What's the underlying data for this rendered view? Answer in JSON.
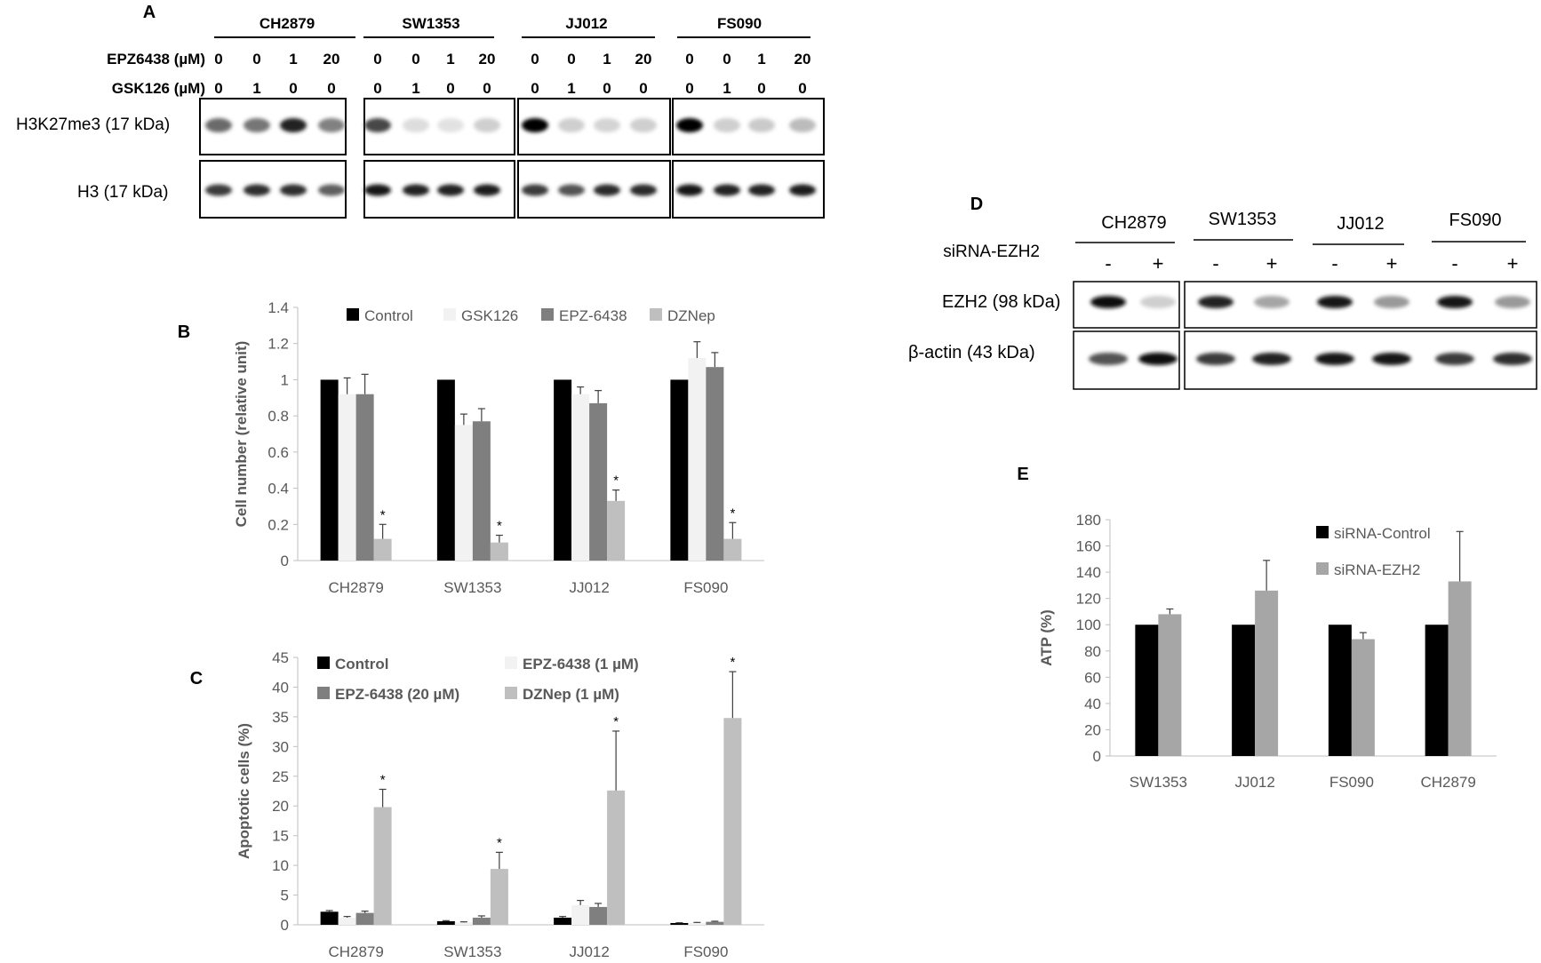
{
  "panel_letters": [
    "A",
    "B",
    "C",
    "D",
    "E"
  ],
  "blot_a": {
    "cell_lines": [
      "CH2879",
      "SW1353",
      "JJ012",
      "FS090"
    ],
    "epz_label": "EPZ6438 (µM)",
    "gsk_label": "GSK126 (µM)",
    "epz_values": [
      "0",
      "0",
      "1",
      "20"
    ],
    "gsk_values": [
      "0",
      "1",
      "0",
      "0"
    ],
    "rows": [
      "H3K27me3 (17 kDa)",
      "H3 (17 kDa)"
    ],
    "intensities": {
      "H3K27me3": [
        [
          0.55,
          0.5,
          0.85,
          0.45
        ],
        [
          0.7,
          0.06,
          0.04,
          0.12
        ],
        [
          0.98,
          0.12,
          0.1,
          0.12
        ],
        [
          0.98,
          0.12,
          0.14,
          0.2
        ]
      ],
      "H3": [
        [
          0.75,
          0.8,
          0.8,
          0.6
        ],
        [
          0.9,
          0.85,
          0.85,
          0.88
        ],
        [
          0.75,
          0.65,
          0.82,
          0.82
        ],
        [
          0.9,
          0.85,
          0.85,
          0.88
        ]
      ]
    }
  },
  "blot_d": {
    "cell_lines": [
      "CH2879",
      "SW1353",
      "JJ012",
      "FS090"
    ],
    "treatment_label": "siRNA-EZH2",
    "signs": [
      "-",
      "+"
    ],
    "rows": [
      "EZH2 (98 kDa)",
      "β-actin (43 kDa)"
    ],
    "intensities": {
      "EZH2": [
        [
          0.95,
          0.12
        ],
        [
          0.85,
          0.3
        ],
        [
          0.9,
          0.35
        ],
        [
          0.9,
          0.35
        ]
      ],
      "beta_actin": [
        [
          0.65,
          0.95
        ],
        [
          0.75,
          0.85
        ],
        [
          0.9,
          0.9
        ],
        [
          0.75,
          0.8
        ]
      ]
    }
  },
  "chart_data": [
    {
      "panel": "B",
      "type": "bar",
      "categories": [
        "CH2879",
        "SW1353",
        "JJ012",
        "FS090"
      ],
      "ylabel": "Cell number (relative unit)",
      "ylim": [
        0,
        1.4
      ],
      "yticks": [
        "0",
        "0.2",
        "0.4",
        "0.6",
        "0.8",
        "1",
        "1.2",
        "1.4"
      ],
      "legend_position": "top",
      "series": [
        {
          "name": "Control",
          "color": "#000000",
          "values": [
            1.0,
            1.0,
            1.0,
            1.0
          ],
          "errors": [
            0,
            0,
            0,
            0
          ]
        },
        {
          "name": "GSK126",
          "color": "#f2f2f2",
          "values": [
            0.92,
            0.75,
            0.92,
            1.12
          ],
          "errors": [
            0.09,
            0.06,
            0.04,
            0.09
          ]
        },
        {
          "name": "EPZ-6438",
          "color": "#7f7f7f",
          "values": [
            0.92,
            0.77,
            0.87,
            1.07
          ],
          "errors": [
            0.11,
            0.07,
            0.07,
            0.08
          ]
        },
        {
          "name": "DZNep",
          "color": "#bfbfbf",
          "values": [
            0.12,
            0.1,
            0.33,
            0.12
          ],
          "errors": [
            0.08,
            0.04,
            0.06,
            0.09
          ]
        }
      ],
      "significance_series": "DZNep",
      "significance": [
        "*",
        "*",
        "*",
        "*"
      ]
    },
    {
      "panel": "C",
      "type": "bar",
      "categories": [
        "CH2879",
        "SW1353",
        "JJ012",
        "FS090"
      ],
      "ylabel": "Apoptotic cells (%)",
      "ylim": [
        0,
        45
      ],
      "yticks": [
        "0",
        "5",
        "10",
        "15",
        "20",
        "25",
        "30",
        "35",
        "40",
        "45"
      ],
      "legend_position": "top",
      "series": [
        {
          "name": "Control",
          "color": "#000000",
          "values": [
            2.2,
            0.6,
            1.2,
            0.3
          ],
          "errors": [
            0.2,
            0.1,
            0.2,
            0.05
          ]
        },
        {
          "name": "EPZ-6438 (1 µM)",
          "color": "#f2f2f2",
          "values": [
            1.2,
            0.4,
            3.3,
            0.3
          ],
          "errors": [
            0.2,
            0.1,
            0.8,
            0.1
          ]
        },
        {
          "name": "EPZ-6438 (20 µM)",
          "color": "#7f7f7f",
          "values": [
            2.0,
            1.2,
            3.0,
            0.5
          ],
          "errors": [
            0.3,
            0.3,
            0.6,
            0.1
          ]
        },
        {
          "name": "DZNep (1 µM)",
          "color": "#bfbfbf",
          "values": [
            19.8,
            9.4,
            22.6,
            34.8
          ],
          "errors": [
            3.0,
            2.8,
            10.0,
            7.8
          ]
        }
      ],
      "significance_series": "DZNep (1 µM)",
      "significance": [
        "*",
        "*",
        "*",
        "*"
      ]
    },
    {
      "panel": "E",
      "type": "bar",
      "categories": [
        "SW1353",
        "JJ012",
        "FS090",
        "CH2879"
      ],
      "ylabel": "ATP (%)",
      "ylim": [
        0,
        180
      ],
      "yticks": [
        "0",
        "20",
        "40",
        "60",
        "80",
        "100",
        "120",
        "140",
        "160",
        "180"
      ],
      "legend_position": "top-right",
      "series": [
        {
          "name": "siRNA-Control",
          "color": "#000000",
          "values": [
            100,
            100,
            100,
            100
          ],
          "errors": [
            0,
            0,
            0,
            0
          ]
        },
        {
          "name": "siRNA-EZH2",
          "color": "#a6a6a6",
          "values": [
            108,
            126,
            89,
            133
          ],
          "errors": [
            4,
            23,
            5,
            38
          ]
        }
      ]
    }
  ]
}
